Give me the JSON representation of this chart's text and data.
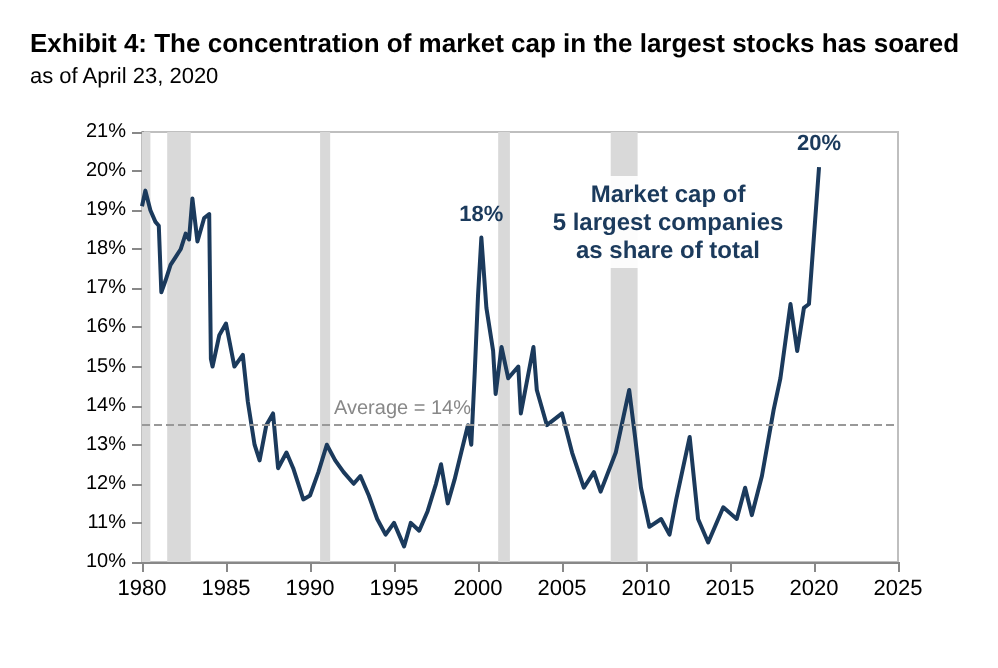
{
  "chart_data": {
    "type": "line",
    "title": "Exhibit 4: The concentration of market cap in the largest stocks has soared",
    "subtitle": "as of April 23, 2020",
    "x": [
      1980.0,
      1980.2,
      1980.5,
      1980.8,
      1981.0,
      1981.15,
      1981.4,
      1981.7,
      1982.0,
      1982.3,
      1982.6,
      1982.8,
      1983.0,
      1983.3,
      1983.7,
      1984.0,
      1984.1,
      1984.2,
      1984.6,
      1985.0,
      1985.5,
      1986.0,
      1986.3,
      1986.7,
      1987.0,
      1987.4,
      1987.8,
      1988.1,
      1988.6,
      1989.0,
      1989.6,
      1990.0,
      1990.5,
      1991.0,
      1991.5,
      1992.0,
      1992.6,
      1993.0,
      1993.5,
      1994.0,
      1994.5,
      1995.0,
      1995.6,
      1996.0,
      1996.5,
      1997.0,
      1997.5,
      1997.8,
      1998.2,
      1998.6,
      1999.0,
      1999.4,
      1999.6,
      1999.8,
      2000.0,
      2000.2,
      2000.5,
      2000.9,
      2001.05,
      2001.4,
      2001.8,
      2002.4,
      2002.55,
      2003.3,
      2003.5,
      2004.1,
      2005.0,
      2005.6,
      2006.3,
      2006.9,
      2007.3,
      2008.2,
      2009.0,
      2009.35,
      2009.7,
      2010.2,
      2010.9,
      2011.4,
      2011.8,
      2012.6,
      2013.1,
      2013.7,
      2014.6,
      2015.4,
      2015.9,
      2016.3,
      2016.9,
      2017.6,
      2018.0,
      2018.6,
      2019.0,
      2019.4,
      2019.7,
      2020.3
    ],
    "series": [
      {
        "color": "#1b3a5c",
        "values": [
          19.1,
          19.5,
          19.0,
          18.7,
          18.6,
          16.9,
          17.2,
          17.6,
          17.8,
          18.0,
          18.4,
          18.25,
          19.3,
          18.2,
          18.8,
          18.9,
          15.2,
          15.0,
          15.8,
          16.1,
          15.0,
          15.3,
          14.1,
          13.0,
          12.6,
          13.5,
          13.8,
          12.4,
          12.8,
          12.4,
          11.6,
          11.7,
          12.3,
          13.0,
          12.6,
          12.3,
          12.0,
          12.2,
          11.7,
          11.1,
          10.7,
          11.0,
          10.4,
          11.0,
          10.8,
          11.3,
          12.0,
          12.5,
          11.5,
          12.1,
          12.8,
          13.5,
          13.0,
          14.8,
          16.8,
          18.3,
          16.5,
          15.4,
          14.3,
          15.5,
          14.7,
          15.0,
          13.8,
          15.5,
          14.4,
          13.5,
          13.8,
          12.8,
          11.9,
          12.3,
          11.8,
          12.8,
          14.4,
          13.2,
          11.9,
          10.9,
          11.1,
          10.7,
          11.6,
          13.2,
          11.1,
          10.5,
          11.4,
          11.1,
          11.9,
          11.2,
          12.2,
          13.9,
          14.7,
          16.6,
          15.4,
          16.5,
          16.6,
          20.1
        ]
      }
    ],
    "xlim": [
      1980,
      2025
    ],
    "xticks": [
      1980,
      1985,
      1990,
      1995,
      2000,
      2005,
      2010,
      2015,
      2020,
      2025
    ],
    "ylim": [
      10,
      21
    ],
    "yticks": [
      {
        "value": 10,
        "label": "10%"
      },
      {
        "value": 11,
        "label": "11%"
      },
      {
        "value": 12,
        "label": "12%"
      },
      {
        "value": 13,
        "label": "13%"
      },
      {
        "value": 14,
        "label": "14%"
      },
      {
        "value": 15,
        "label": "15%"
      },
      {
        "value": 16,
        "label": "16%"
      },
      {
        "value": 17,
        "label": "17%"
      },
      {
        "value": 18,
        "label": "18%"
      },
      {
        "value": 19,
        "label": "19%"
      },
      {
        "value": 20,
        "label": "20%"
      },
      {
        "value": 21,
        "label": "21%"
      }
    ],
    "ref_lines": [
      {
        "axis": "y",
        "value": 13.5,
        "label": "Average = 14%",
        "color": "#999999",
        "line_style": "dashed"
      }
    ],
    "bands": [
      {
        "axis": "x",
        "from": 1980.0,
        "to": 1980.5,
        "color": "#d9d9d9"
      },
      {
        "axis": "x",
        "from": 1981.5,
        "to": 1982.9,
        "color": "#d9d9d9"
      },
      {
        "axis": "x",
        "from": 1990.6,
        "to": 1991.2,
        "color": "#d9d9d9"
      },
      {
        "axis": "x",
        "from": 2001.2,
        "to": 2001.9,
        "color": "#d9d9d9"
      },
      {
        "axis": "x",
        "from": 2007.9,
        "to": 2009.5,
        "color": "#d9d9d9"
      }
    ],
    "annotations": [
      {
        "text": "18%",
        "x": 2000.2,
        "y": 18.3
      },
      {
        "text": "20%",
        "x": 2020.3,
        "y": 20.1
      },
      "Market cap of\n5 largest companies\nas share of total"
    ],
    "grid": false,
    "marker": "none",
    "line_style": "solid"
  }
}
